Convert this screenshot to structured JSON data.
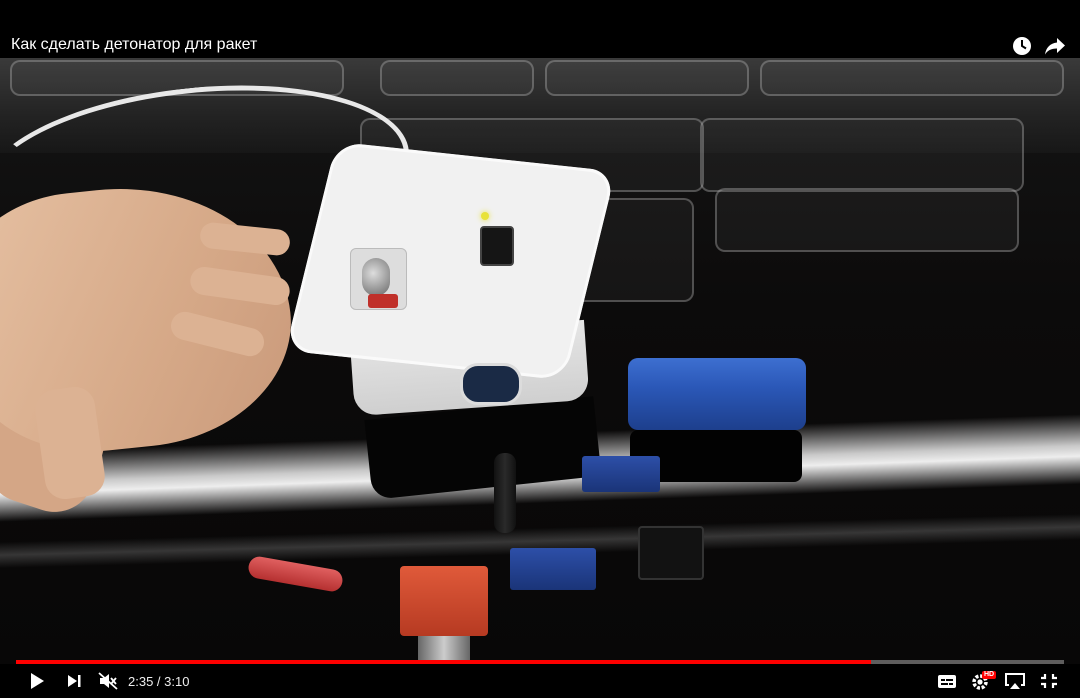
{
  "video": {
    "title": "Как сделать детонатор для ракет"
  },
  "header": {
    "icons": [
      "watch-later-icon",
      "share-icon"
    ]
  },
  "controls": {
    "current_time": "2:35",
    "separator": " / ",
    "duration": "3:10",
    "progress_fraction": 0.816,
    "quality_badge": "HD",
    "icons": [
      "play-icon",
      "next-icon",
      "mute-icon",
      "subtitles-icon",
      "settings-icon",
      "airplay-icon",
      "exit-fullscreen-icon"
    ]
  },
  "colors": {
    "progress": "#ff0000",
    "background": "#000000"
  }
}
